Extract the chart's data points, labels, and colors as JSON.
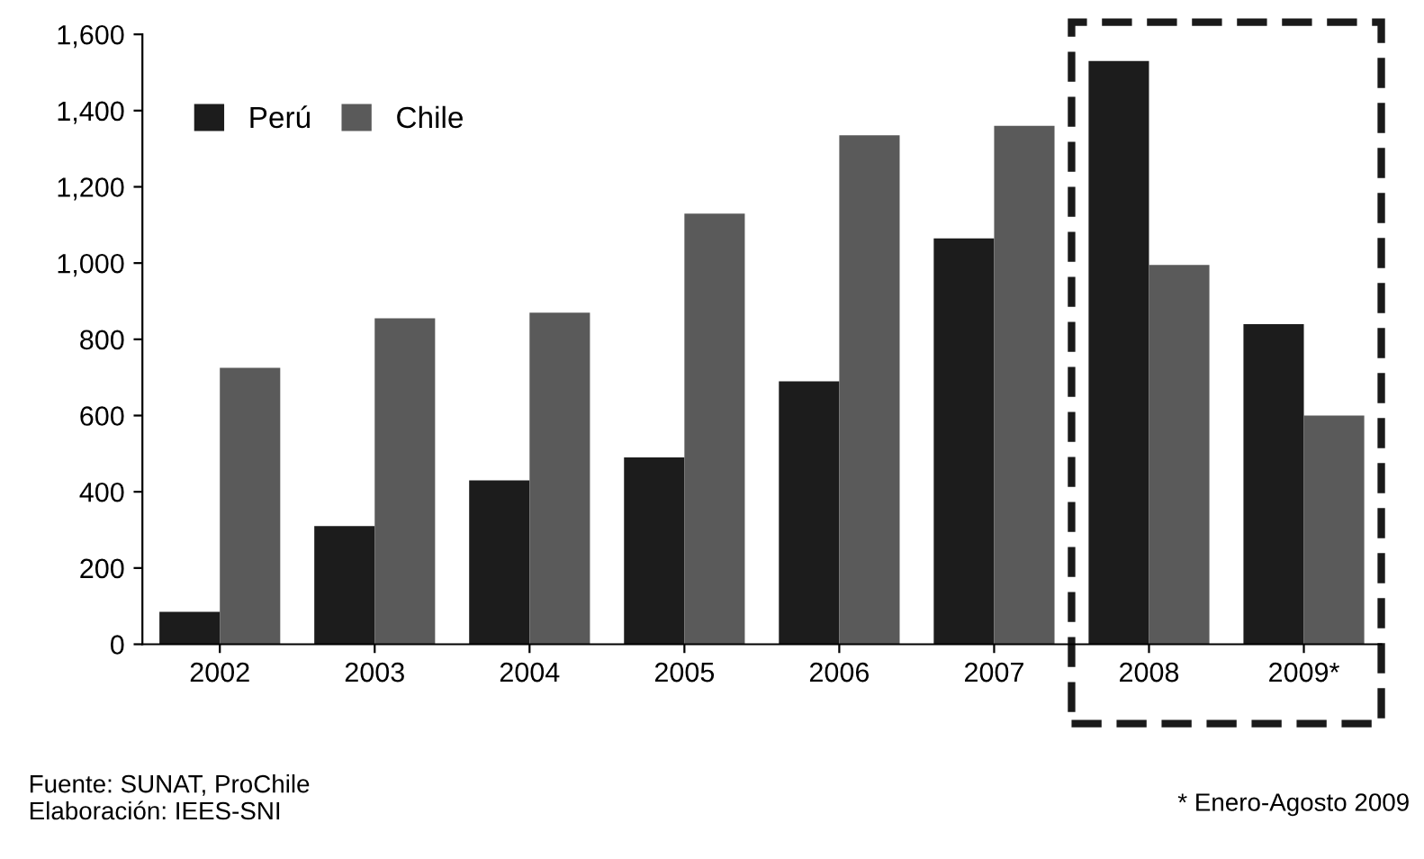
{
  "chart_data": {
    "type": "bar",
    "categories": [
      "2002",
      "2003",
      "2004",
      "2005",
      "2006",
      "2007",
      "2008",
      "2009*"
    ],
    "series": [
      {
        "name": "Perú",
        "color": "#1c1c1c",
        "values": [
          85,
          310,
          430,
          490,
          690,
          1065,
          1530,
          840
        ]
      },
      {
        "name": "Chile",
        "color": "#5a5a5a",
        "values": [
          725,
          855,
          870,
          1130,
          1335,
          1360,
          995,
          600
        ]
      }
    ],
    "ylim": [
      0,
      1600
    ],
    "yticks": [
      0,
      {
        "value": 200,
        "label": "200"
      },
      {
        "value": 400,
        "label": "400"
      },
      {
        "value": 600,
        "label": "600"
      },
      {
        "value": 800,
        "label": "800"
      },
      {
        "value": 1000,
        "label": "1,000"
      },
      {
        "value": 1200,
        "label": "1,200"
      },
      {
        "value": 1400,
        "label": "1,400"
      },
      {
        "value": 1600,
        "label": "1,600"
      }
    ],
    "grid": false,
    "legend": "top left",
    "annotations": [
      "Fuente: SUNAT, ProChile\nElaboración: IEES-SNI",
      "* Enero-Agosto 2009"
    ]
  }
}
